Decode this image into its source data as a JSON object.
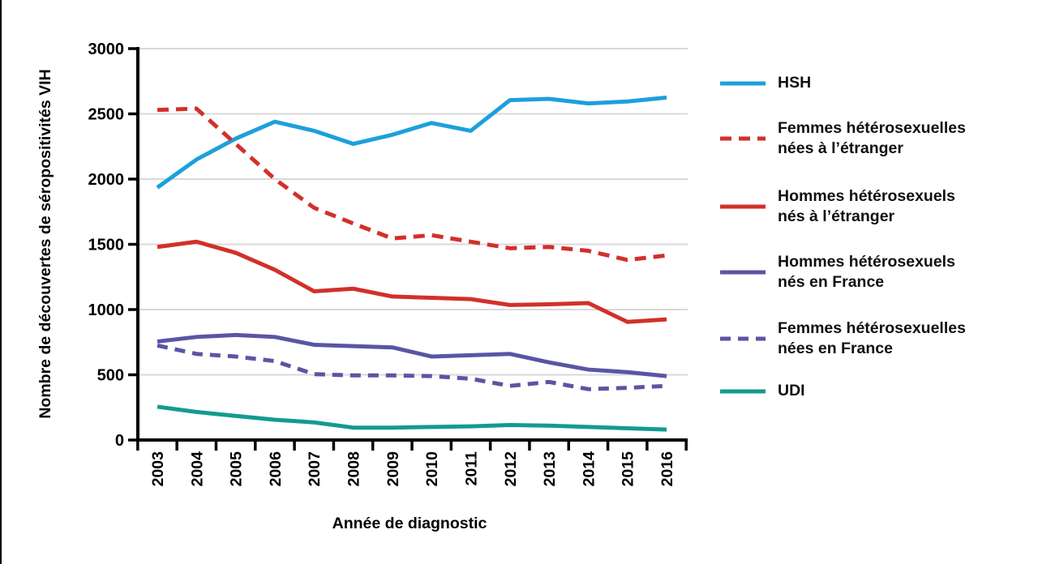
{
  "figure": {
    "background": "#ffffff",
    "y_axis_title": "Nombre de découvertes de séropositivités VIH",
    "x_axis_title": "Année de diagnostic"
  },
  "colors": {
    "hsh_cyan": "#1DA0DB",
    "red": "#D2302A",
    "purple": "#5A55A4",
    "teal": "#139B90",
    "grid": "#D9D9D9",
    "axis": "#000000"
  },
  "legend": {
    "items": [
      {
        "label": "HSH",
        "color": "#1DA0DB",
        "dash": null
      },
      {
        "label": "Femmes hétérosexuelles\nnées à l’étranger",
        "color": "#D2302A",
        "dash": [
          14,
          9
        ]
      },
      {
        "label": "Hommes hétérosexuels\nnés à l’étranger",
        "color": "#D2302A",
        "dash": null
      },
      {
        "label": "Hommes hétérosexuels\nnés en France",
        "color": "#5A55A4",
        "dash": null
      },
      {
        "label": "Femmes hétérosexuelles\nnées en France",
        "color": "#5A55A4",
        "dash": [
          13,
          9
        ]
      },
      {
        "label": "UDI",
        "color": "#139B90",
        "dash": null
      }
    ]
  },
  "chart_data": {
    "type": "line",
    "title": "",
    "xlabel": "Année de diagnostic",
    "ylabel": "Nombre de découvertes de séropositivités VIH",
    "categories": [
      "2003",
      "2004",
      "2005",
      "2006",
      "2007",
      "2008",
      "2009",
      "2010",
      "2011",
      "2012",
      "2013",
      "2014",
      "2015",
      "2016"
    ],
    "ylim": [
      0,
      3000
    ],
    "yticks": [
      0,
      500,
      1000,
      1500,
      2000,
      2500,
      3000
    ],
    "grid": true,
    "legend_position": "right",
    "grid_color": "#D9D9D9",
    "axis_color": "#000000",
    "series": [
      {
        "name": "HSH",
        "color": "#1DA0DB",
        "dash": null,
        "values": [
          1935,
          2150,
          2310,
          2440,
          2370,
          2270,
          2340,
          2430,
          2370,
          2605,
          2615,
          2580,
          2595,
          2625
        ]
      },
      {
        "name": "Femmes hétérosexuelles nées à l’étranger",
        "color": "#D2302A",
        "dash": [
          14,
          9
        ],
        "values": [
          2530,
          2540,
          2270,
          2000,
          1780,
          1660,
          1545,
          1570,
          1520,
          1470,
          1480,
          1450,
          1380,
          1415
        ]
      },
      {
        "name": "Hommes hétérosexuels nés à l’étranger",
        "color": "#D2302A",
        "dash": null,
        "values": [
          1480,
          1520,
          1435,
          1305,
          1140,
          1160,
          1100,
          1090,
          1080,
          1035,
          1040,
          1050,
          905,
          925
        ]
      },
      {
        "name": "Hommes hétérosexuels nés en France",
        "color": "#5A55A4",
        "dash": null,
        "values": [
          755,
          790,
          805,
          790,
          730,
          720,
          710,
          640,
          650,
          660,
          595,
          540,
          520,
          490
        ]
      },
      {
        "name": "Femmes hétérosexuelles nées en France",
        "color": "#5A55A4",
        "dash": [
          13,
          9
        ],
        "values": [
          725,
          660,
          640,
          605,
          505,
          495,
          495,
          490,
          470,
          415,
          445,
          390,
          400,
          415
        ]
      },
      {
        "name": "UDI",
        "color": "#139B90",
        "dash": null,
        "values": [
          255,
          215,
          185,
          155,
          135,
          95,
          95,
          100,
          105,
          115,
          110,
          100,
          90,
          80
        ]
      }
    ]
  }
}
